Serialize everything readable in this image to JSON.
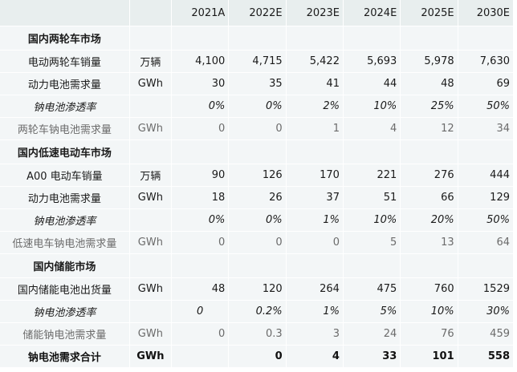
{
  "table": {
    "header": {
      "label": "",
      "unit": "",
      "years": [
        "2021A",
        "2022E",
        "2023E",
        "2024E",
        "2025E",
        "2030E"
      ]
    },
    "sections": [
      {
        "title": "国内两轮车市场",
        "rows": [
          {
            "label": "电动两轮车销量",
            "unit": "万辆",
            "values": [
              "4,100",
              "4,715",
              "5,422",
              "5,693",
              "5,978",
              "7,630"
            ]
          },
          {
            "label": "动力电池需求量",
            "unit": "GWh",
            "values": [
              "30",
              "35",
              "41",
              "44",
              "48",
              "69"
            ]
          },
          {
            "label": "钠电池渗透率",
            "unit": "",
            "values": [
              "0%",
              "0%",
              "2%",
              "10%",
              "25%",
              "50%"
            ]
          },
          {
            "label": "两轮车钠电池需求量",
            "unit": "GWh",
            "values": [
              "0",
              "0",
              "1",
              "4",
              "12",
              "34"
            ]
          }
        ]
      },
      {
        "title": "国内低速电动车市场",
        "rows": [
          {
            "label": "A00 电动车销量",
            "unit": "万辆",
            "values": [
              "90",
              "126",
              "170",
              "221",
              "276",
              "444"
            ]
          },
          {
            "label": "动力电池需求量",
            "unit": "GWh",
            "values": [
              "18",
              "26",
              "37",
              "51",
              "66",
              "129"
            ]
          },
          {
            "label": "钠电池渗透率",
            "unit": "",
            "values": [
              "0%",
              "0%",
              "1%",
              "10%",
              "20%",
              "50%"
            ]
          },
          {
            "label": "低速电车钠电池需求量",
            "unit": "GWh",
            "values": [
              "0",
              "0",
              "0",
              "5",
              "13",
              "64"
            ]
          }
        ]
      },
      {
        "title": "国内储能市场",
        "rows": [
          {
            "label": "国内储能电池出货量",
            "unit": "GWh",
            "values": [
              "48",
              "120",
              "264",
              "475",
              "760",
              "1529"
            ]
          },
          {
            "label": "钠电池渗透率",
            "unit": "",
            "values": [
              "0",
              "0.2%",
              "1%",
              "5%",
              "10%",
              "30%"
            ]
          },
          {
            "label": "储能钠电池需求量",
            "unit": "GWh",
            "values": [
              "0",
              "0.3",
              "3",
              "24",
              "76",
              "459"
            ]
          }
        ]
      }
    ],
    "total": {
      "label": "钠电池需求合计",
      "unit": "GWh",
      "values": [
        "",
        "0",
        "4",
        "33",
        "101",
        "558"
      ]
    }
  }
}
